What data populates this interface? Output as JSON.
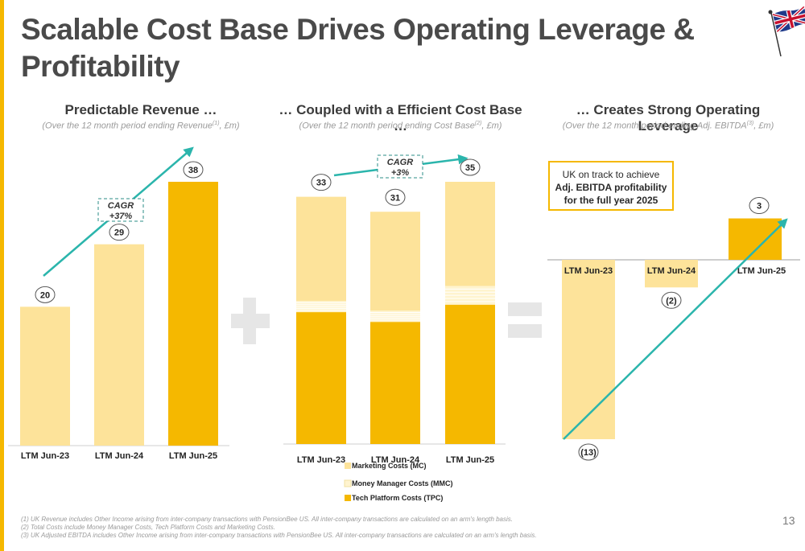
{
  "title": "Scalable Cost Base Drives Operating Leverage & Profitability",
  "page_number": "13",
  "colors": {
    "accent": "#F5B800",
    "light_bar": "#FDE39A",
    "teal": "#2BB5AC"
  },
  "panels": {
    "revenue": {
      "title": "Predictable Revenue …",
      "subtitle": "(Over the 12 month period ending Revenue",
      "subtitle_sup": "(1)",
      "subtitle_end": ", £m)"
    },
    "cost": {
      "title": "… Coupled with a Efficient Cost Base …",
      "subtitle": "(Over the 12 month period ending Cost Base",
      "subtitle_sup": "(2)",
      "subtitle_end": ", £m)"
    },
    "ebitda": {
      "title": "… Creates Strong Operating Leverage",
      "subtitle": "(Over the 12 month period ending Adj. EBITDA",
      "subtitle_sup": "(3)",
      "subtitle_end": ", £m)"
    }
  },
  "callout": {
    "line1": "UK on track to achieve",
    "line2": "Adj. EBITDA profitability",
    "line3": "for the full year 2025"
  },
  "footnotes": [
    "(1) UK Revenue includes Other Income arising from inter-company transactions with PensionBee US. All inter-company transactions are calculated on an arm's length basis.",
    "(2) Total Costs include Money Manager Costs, Tech Platform Costs and Marketing Costs.",
    "(3) UK Adjusted EBITDA includes Other Income arising from inter-company transactions with PensionBee US. All inter-company transactions are calculated on an arm's length basis."
  ],
  "chart_data": [
    {
      "type": "bar",
      "categories": [
        "LTM Jun-23",
        "LTM Jun-24",
        "LTM Jun-25"
      ],
      "values": [
        20,
        29,
        38
      ],
      "data_labels": [
        "20",
        "29",
        "38"
      ],
      "ylim": [
        0,
        40
      ],
      "annotation": {
        "line1": "CAGR",
        "line2": "+37%"
      }
    },
    {
      "type": "bar",
      "stacked": true,
      "categories": [
        "LTM Jun-23",
        "LTM Jun-24",
        "LTM Jun-25"
      ],
      "series": [
        {
          "name": "Tech Platform Costs (TPC)",
          "values": [
            17.6,
            16.3,
            18.6
          ]
        },
        {
          "name": "Money Manager Costs (MMC)",
          "values": [
            1.5,
            1.5,
            2.5
          ]
        },
        {
          "name": "Marketing Costs (MC)",
          "values": [
            13.9,
            13.2,
            13.9
          ]
        }
      ],
      "legend_order": [
        "Marketing Costs (MC)",
        "Money Manager Costs (MMC)",
        "Tech Platform Costs (TPC)"
      ],
      "totals": [
        33,
        31,
        35
      ],
      "total_labels": [
        "33",
        "31",
        "35"
      ],
      "ylim": [
        0,
        37
      ],
      "annotation": {
        "line1": "CAGR",
        "line2": "+3%"
      }
    },
    {
      "type": "bar",
      "categories": [
        "LTM Jun-23",
        "LTM Jun-24",
        "LTM Jun-25"
      ],
      "values": [
        -13,
        -2,
        3
      ],
      "data_labels": [
        "(13)",
        "(2)",
        "3"
      ]
    }
  ]
}
